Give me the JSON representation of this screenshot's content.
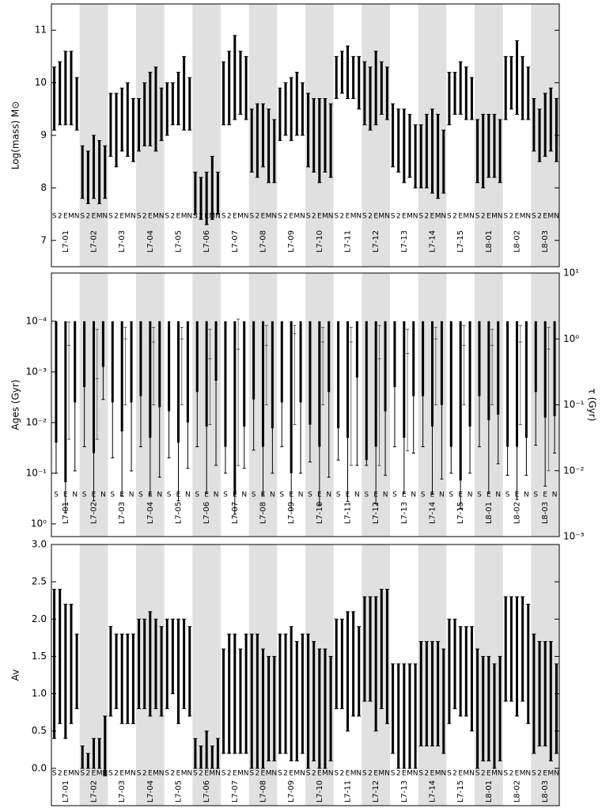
{
  "chart_data": [
    {
      "type": "errorbar",
      "ylabel": "Log(mass) M⊙",
      "categories": [
        "L7-01",
        "L7-02",
        "L7-03",
        "L7-04",
        "L7-05",
        "L7-06",
        "L7-07",
        "L7-08",
        "L7-09",
        "L7-10",
        "L7-11",
        "L7-12",
        "L7-13",
        "L7-14",
        "L7-15",
        "L8-01",
        "L8-02",
        "L8-03"
      ],
      "ylim": [
        6.5,
        11.5
      ],
      "yticks": [
        7,
        8,
        9,
        10,
        11
      ],
      "color": "#000000",
      "band_color": "#e0e0e0",
      "series": [
        {
          "name": "S",
          "values": [
            9.7,
            8.3,
            9.2,
            9.2,
            9.5,
            7.9,
            9.8,
            8.9,
            9.4,
            9.1,
            10.1,
            9.8,
            9.0,
            8.6,
            9.7,
            8.7,
            9.9,
            9.2
          ],
          "errors": [
            0.6,
            0.5,
            0.6,
            0.5,
            0.5,
            0.4,
            0.6,
            0.6,
            0.5,
            0.7,
            0.4,
            0.6,
            0.6,
            0.6,
            0.5,
            0.6,
            0.6,
            0.5
          ]
        },
        {
          "name": "2",
          "values": [
            9.8,
            8.2,
            9.1,
            9.4,
            9.6,
            7.8,
            9.9,
            8.9,
            9.5,
            9.0,
            10.2,
            9.7,
            8.9,
            8.7,
            9.8,
            8.7,
            10.0,
            9.0
          ],
          "errors": [
            0.6,
            0.5,
            0.7,
            0.6,
            0.4,
            0.4,
            0.7,
            0.7,
            0.5,
            0.7,
            0.4,
            0.6,
            0.6,
            0.7,
            0.4,
            0.7,
            0.5,
            0.5
          ]
        },
        {
          "name": "E",
          "values": [
            9.9,
            8.4,
            9.3,
            9.5,
            9.7,
            7.8,
            10.1,
            9.0,
            9.5,
            8.9,
            10.2,
            9.9,
            8.8,
            8.7,
            9.9,
            8.8,
            10.1,
            9.2
          ],
          "errors": [
            0.7,
            0.6,
            0.6,
            0.7,
            0.5,
            0.5,
            0.8,
            0.6,
            0.6,
            0.8,
            0.5,
            0.7,
            0.7,
            0.8,
            0.5,
            0.6,
            0.7,
            0.6
          ]
        },
        {
          "name": "M",
          "values": [
            9.9,
            8.3,
            9.3,
            9.5,
            9.8,
            8.0,
            10.0,
            8.8,
            9.6,
            9.0,
            10.1,
            9.9,
            8.8,
            8.6,
            9.8,
            8.8,
            9.9,
            9.3
          ],
          "errors": [
            0.7,
            0.6,
            0.7,
            0.8,
            0.7,
            0.6,
            0.6,
            0.7,
            0.6,
            0.7,
            0.4,
            0.5,
            0.6,
            0.8,
            0.5,
            0.6,
            0.6,
            0.6
          ]
        },
        {
          "name": "N",
          "values": [
            9.6,
            8.3,
            9.1,
            9.4,
            9.6,
            7.9,
            9.9,
            8.7,
            9.5,
            8.9,
            10.0,
            9.8,
            8.6,
            8.5,
            9.7,
            8.7,
            9.8,
            9.1
          ],
          "errors": [
            0.5,
            0.5,
            0.6,
            0.5,
            0.5,
            0.4,
            0.6,
            0.6,
            0.5,
            0.7,
            0.5,
            0.5,
            0.6,
            0.6,
            0.4,
            0.6,
            0.5,
            0.6
          ]
        }
      ]
    },
    {
      "type": "errorbar",
      "ylabel": "Ages (Gyr)",
      "y2label": "τ (Gyr)",
      "ylog": true,
      "categories": [
        "L7-01",
        "L7-02",
        "L7-03",
        "L7-04",
        "L7-05",
        "L7-06",
        "L7-07",
        "L7-08",
        "L7-09",
        "L7-10",
        "L7-11",
        "L7-12",
        "L7-13",
        "L7-14",
        "L7-15",
        "L8-01",
        "L8-02",
        "L8-03"
      ],
      "ylim": [
        1.78,
        1.12e-05
      ],
      "yticks": [
        {
          "value": 0.0001,
          "label": "10⁻⁴"
        },
        {
          "value": 0.001,
          "label": "10⁻³"
        },
        {
          "value": 0.01,
          "label": "10⁻²"
        },
        {
          "value": 0.1,
          "label": "10⁻¹"
        },
        {
          "value": 1,
          "label": "10⁰"
        }
      ],
      "y2lim": [
        0.001,
        10
      ],
      "y2ticks": [
        {
          "value": 0.001,
          "label": "10⁻³"
        },
        {
          "value": 0.01,
          "label": "10⁻²"
        },
        {
          "value": 0.1,
          "label": "10⁻¹"
        },
        {
          "value": 1,
          "label": "10⁰"
        },
        {
          "value": 10,
          "label": "10¹"
        }
      ],
      "color": "#000000",
      "band_color": "#e0e0e0",
      "series": [
        {
          "name": "S",
          "values": [
            0.025,
            0.002,
            0.004,
            0.003,
            0.006,
            0.0025,
            0.03,
            0.0035,
            0.004,
            0.011,
            0.013,
            0.055,
            0.002,
            0.003,
            0.03,
            0.003,
            0.03,
            0.0025
          ],
          "lower": [
            0.0001,
            0.0001,
            0.0001,
            0.0001,
            0.0001,
            0.0001,
            0.0001,
            0.0001,
            0.0001,
            0.0001,
            0.0001,
            0.0001,
            0.0001,
            0.0001,
            0.0001,
            0.0001,
            0.0001,
            0.0001
          ],
          "upper": [
            0.1,
            0.03,
            0.05,
            0.03,
            0.05,
            0.03,
            0.1,
            0.035,
            0.03,
            0.06,
            0.055,
            0.07,
            0.03,
            0.03,
            0.1,
            0.03,
            0.11,
            0.028
          ]
        },
        {
          "name": "E",
          "values": [
            0.15,
            0.04,
            0.015,
            0.02,
            0.025,
            0.012,
            0.27,
            0.03,
            0.1,
            0.03,
            0.02,
            0.03,
            0.02,
            0.012,
            0.14,
            0.009,
            0.03,
            0.008
          ],
          "lower": [
            0.0001,
            0.0001,
            0.0001,
            0.0001,
            0.0001,
            0.0001,
            0.0001,
            0.0001,
            0.0001,
            0.0001,
            0.0001,
            0.0001,
            0.0001,
            0.0001,
            0.0001,
            0.0001,
            0.0001,
            0.0001
          ],
          "upper": [
            0.6,
            0.35,
            0.28,
            0.27,
            0.35,
            0.25,
            0.65,
            0.27,
            0.55,
            0.42,
            0.36,
            0.4,
            0.25,
            0.26,
            0.5,
            0.25,
            0.33,
            0.18
          ]
        },
        {
          "name": "N",
          "values": [
            0.004,
            0.0008,
            0.004,
            0.005,
            0.01,
            0.0015,
            0.012,
            0.013,
            0.004,
            0.0025,
            0.0013,
            0.006,
            0.003,
            0.0045,
            0.012,
            0.007,
            0.02,
            0.0075
          ],
          "lower": [
            0.0001,
            0.0001,
            0.0001,
            0.0001,
            0.0001,
            0.0001,
            0.0001,
            0.0001,
            0.0001,
            0.0001,
            0.0001,
            0.0001,
            0.0001,
            0.0001,
            0.0001,
            0.0001,
            0.0001,
            0.0001
          ],
          "upper": [
            0.09,
            0.0035,
            0.09,
            0.12,
            0.08,
            0.07,
            0.08,
            0.1,
            0.1,
            0.12,
            0.07,
            0.11,
            0.04,
            0.13,
            0.1,
            0.065,
            0.11,
            0.04
          ]
        },
        {
          "axis": "y2",
          "values": [
            0.8,
            0.25,
            1,
            0.9,
            1,
            0.5,
            0.7,
            0.8,
            1.2,
            0.9,
            0.9,
            0.5,
            0.6,
            1,
            0.8,
            0.8,
            0.9,
            0.7
          ],
          "lower": [
            0.03,
            0.03,
            0.1,
            0.1,
            0.1,
            0.05,
            0.012,
            0.1,
            0.05,
            0.1,
            0.012,
            0.012,
            0.02,
            0.1,
            0.1,
            0.1,
            0.05,
            0.01
          ],
          "upper": [
            1.8,
            1.4,
            1.5,
            1.5,
            1.5,
            1.4,
            2,
            1.6,
            1.6,
            1.5,
            1.5,
            1.6,
            1.4,
            1.5,
            1.6,
            1.4,
            1.6,
            1.5
          ]
        }
      ]
    },
    {
      "type": "errorbar",
      "ylabel": "Av",
      "categories": [
        "L7-01",
        "L7-02",
        "L7-03",
        "L7-04",
        "L7-05",
        "L7-06",
        "L7-07",
        "L7-08",
        "L7-09",
        "L7-10",
        "L7-11",
        "L7-12",
        "L7-13",
        "L7-14",
        "L7-15",
        "L8-01",
        "L8-02",
        "L8-03"
      ],
      "ylim": [
        -0.5,
        3.0
      ],
      "yticks": [
        {
          "value": 0,
          "label": "0.0"
        },
        0.5,
        {
          "value": 1,
          "label": "1.0"
        },
        1.5,
        {
          "value": 2,
          "label": "2.0"
        },
        2.5,
        {
          "value": 3,
          "label": "3.0"
        }
      ],
      "color": "#000000",
      "band_color": "#e0e0e0",
      "series": [
        {
          "name": "S",
          "values": [
            1.4,
            0.15,
            1.3,
            1.4,
            1.4,
            0.2,
            0.9,
            0.9,
            1.0,
            0.9,
            1.4,
            1.6,
            0.8,
            1.0,
            1.3,
            0.8,
            1.6,
            1.0
          ],
          "errors": [
            1.0,
            0.15,
            0.6,
            0.6,
            0.6,
            0.2,
            0.7,
            0.9,
            0.8,
            0.9,
            0.6,
            0.7,
            0.6,
            0.7,
            0.7,
            0.8,
            0.7,
            0.8
          ]
        },
        {
          "name": "2",
          "values": [
            1.5,
            0.1,
            1.3,
            1.4,
            1.5,
            0.15,
            1.0,
            0.9,
            1.0,
            0.9,
            1.4,
            1.6,
            0.7,
            1.0,
            1.4,
            0.8,
            1.6,
            1.0
          ],
          "errors": [
            0.9,
            0.1,
            0.5,
            0.6,
            0.5,
            0.15,
            0.8,
            0.9,
            0.8,
            0.8,
            0.6,
            0.7,
            0.7,
            0.7,
            0.6,
            0.7,
            0.7,
            0.7
          ]
        },
        {
          "name": "E",
          "values": [
            1.3,
            0.2,
            1.2,
            1.4,
            1.3,
            0.25,
            1.0,
            0.8,
            1.0,
            0.8,
            1.3,
            1.4,
            0.7,
            1.0,
            1.3,
            0.8,
            1.5,
            1.0
          ],
          "errors": [
            0.9,
            0.2,
            0.6,
            0.7,
            0.7,
            0.25,
            0.8,
            0.8,
            0.9,
            0.8,
            0.8,
            0.9,
            0.7,
            0.7,
            0.6,
            0.7,
            0.8,
            0.7
          ]
        },
        {
          "name": "M",
          "values": [
            1.4,
            0.2,
            1.2,
            1.4,
            1.4,
            0.15,
            0.9,
            0.8,
            0.9,
            0.8,
            1.4,
            1.6,
            0.7,
            1.0,
            1.3,
            0.7,
            1.6,
            0.9
          ],
          "errors": [
            0.8,
            0.2,
            0.6,
            0.6,
            0.6,
            0.15,
            0.7,
            0.7,
            0.8,
            0.8,
            0.7,
            0.8,
            0.7,
            0.7,
            0.6,
            0.7,
            0.7,
            0.8
          ]
        },
        {
          "name": "N",
          "values": [
            1.3,
            0.3,
            1.2,
            1.3,
            1.3,
            0.2,
            1.0,
            0.8,
            1.0,
            0.8,
            1.3,
            1.5,
            0.7,
            0.9,
            1.2,
            0.8,
            1.4,
            0.8
          ],
          "errors": [
            0.5,
            0.4,
            0.6,
            0.6,
            0.6,
            0.2,
            0.8,
            0.7,
            0.8,
            0.7,
            0.6,
            0.9,
            0.7,
            0.7,
            0.7,
            0.7,
            0.8,
            0.6
          ]
        }
      ]
    }
  ]
}
